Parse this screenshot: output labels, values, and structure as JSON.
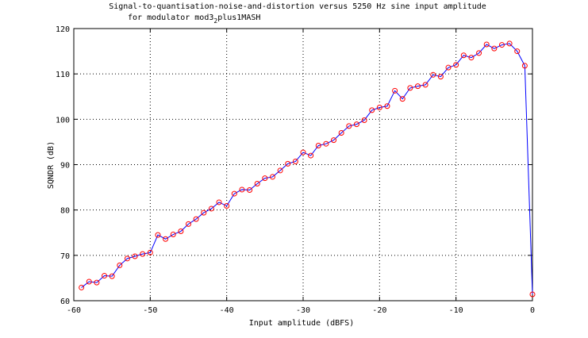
{
  "chart_data": {
    "type": "line",
    "title_line1": "Signal-to-quantisation-noise-and-distortion versus 5250 Hz sine input amplitude",
    "title_line2_prefix": "for modulator mod3",
    "title_line2_subscript": "2",
    "title_line2_suffix": "plus1MASH",
    "xlabel": "Input amplitude (dBFS)",
    "ylabel": "SQNDR (dB)",
    "xlim": [
      -60,
      0
    ],
    "ylim": [
      60,
      120
    ],
    "xticks": [
      -60,
      -50,
      -40,
      -30,
      -20,
      -10,
      0
    ],
    "yticks": [
      60,
      70,
      80,
      90,
      100,
      110,
      120
    ],
    "xtick_labels": [
      "-60",
      "-50",
      "-40",
      "-30",
      "-20",
      "-10",
      "0"
    ],
    "ytick_labels": [
      "60",
      "70",
      "80",
      "90",
      "100",
      "110",
      "120"
    ],
    "grid": true,
    "line_color": "#0000ff",
    "marker_color": "#ff0000",
    "marker": "circle",
    "x": [
      -59,
      -58,
      -57,
      -56,
      -55,
      -54,
      -53,
      -52,
      -51,
      -50,
      -49,
      -48,
      -47,
      -46,
      -45,
      -44,
      -43,
      -42,
      -41,
      -40,
      -39,
      -38,
      -37,
      -36,
      -35,
      -34,
      -33,
      -32,
      -31,
      -30,
      -29,
      -28,
      -27,
      -26,
      -25,
      -24,
      -23,
      -22,
      -21,
      -20,
      -19,
      -18,
      -17,
      -16,
      -15,
      -14,
      -13,
      -12,
      -11,
      -10,
      -9,
      -8,
      -7,
      -6,
      -5,
      -4,
      -3,
      -2,
      -1,
      0
    ],
    "y": [
      62.9,
      64.2,
      64.0,
      65.5,
      65.4,
      67.8,
      69.3,
      69.8,
      70.3,
      70.6,
      74.5,
      73.6,
      74.6,
      75.3,
      76.9,
      78.0,
      79.4,
      80.3,
      81.7,
      80.9,
      83.6,
      84.5,
      84.4,
      85.8,
      87.0,
      87.3,
      88.7,
      90.2,
      90.7,
      92.7,
      92.0,
      94.2,
      94.6,
      95.4,
      97.0,
      98.5,
      98.9,
      99.8,
      102.0,
      102.6,
      102.9,
      106.3,
      104.5,
      106.9,
      107.3,
      107.6,
      109.8,
      109.4,
      111.4,
      112.0,
      114.1,
      113.6,
      114.6,
      116.5,
      115.6,
      116.4,
      116.7,
      115.0,
      111.8,
      61.4
    ]
  }
}
